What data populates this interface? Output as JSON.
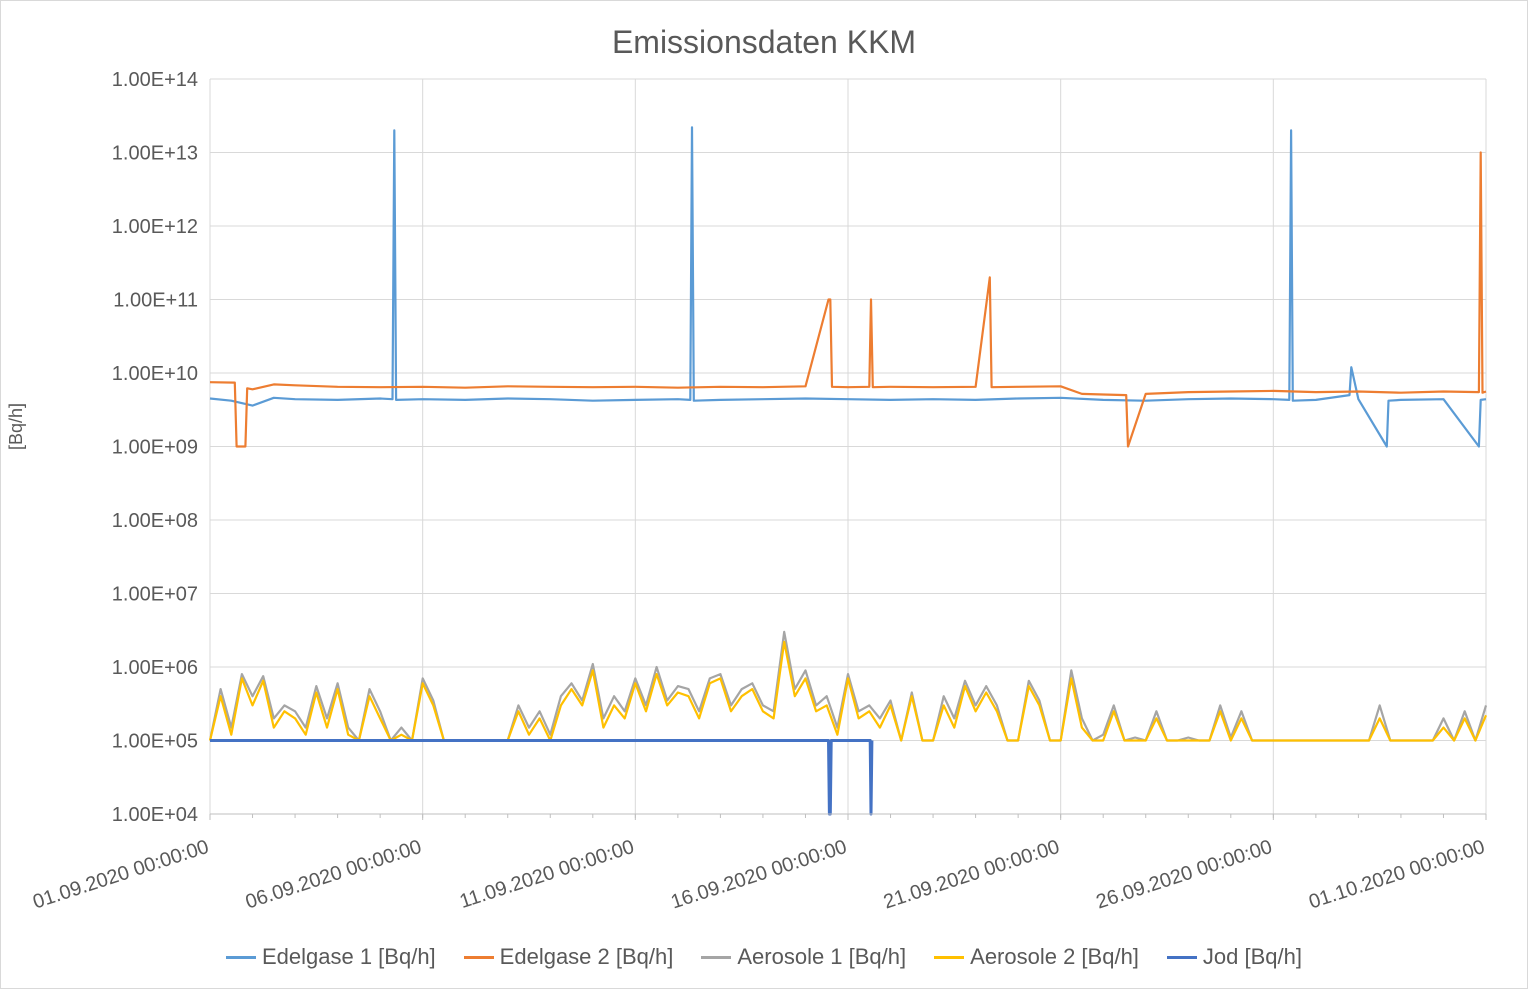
{
  "chart_data": {
    "type": "line",
    "title": "Emissionsdaten KKM",
    "xlabel": "",
    "ylabel": "[Bq/h]",
    "y_scale": "log",
    "ylim": [
      10000,
      100000000000000
    ],
    "y_ticks": [
      "1.00E+04",
      "1.00E+05",
      "1.00E+06",
      "1.00E+07",
      "1.00E+08",
      "1.00E+09",
      "1.00E+10",
      "1.00E+11",
      "1.00E+12",
      "1.00E+13",
      "1.00E+14"
    ],
    "x_range": [
      "2020-09-01 00:00",
      "2020-10-01 00:00"
    ],
    "x_ticks": [
      "01.09.2020 00:00:00",
      "06.09.2020 00:00:00",
      "11.09.2020 00:00:00",
      "16.09.2020 00:00:00",
      "21.09.2020 00:00:00",
      "26.09.2020 00:00:00",
      "01.10.2020 00:00:00"
    ],
    "grid": "major",
    "legend_position": "bottom",
    "series": [
      {
        "name": "Edelgase 1 [Bq/h]",
        "color": "#5b9bd5",
        "x": [
          "2020-09-01 00:00",
          "2020-09-01 12:00",
          "2020-09-02 00:00",
          "2020-09-02 12:00",
          "2020-09-03 00:00",
          "2020-09-04 00:00",
          "2020-09-05 00:00",
          "2020-09-05 07:00",
          "2020-09-05 08:00",
          "2020-09-05 09:00",
          "2020-09-06 00:00",
          "2020-09-07 00:00",
          "2020-09-08 00:00",
          "2020-09-09 00:00",
          "2020-09-10 00:00",
          "2020-09-11 00:00",
          "2020-09-12 00:00",
          "2020-09-12 07:00",
          "2020-09-12 08:00",
          "2020-09-12 09:00",
          "2020-09-13 00:00",
          "2020-09-14 00:00",
          "2020-09-15 00:00",
          "2020-09-16 00:00",
          "2020-09-17 00:00",
          "2020-09-18 00:00",
          "2020-09-19 00:00",
          "2020-09-20 00:00",
          "2020-09-21 00:00",
          "2020-09-22 00:00",
          "2020-09-23 00:00",
          "2020-09-24 00:00",
          "2020-09-25 00:00",
          "2020-09-26 00:00",
          "2020-09-26 09:00",
          "2020-09-26 10:00",
          "2020-09-26 11:00",
          "2020-09-27 00:00",
          "2020-09-27 19:00",
          "2020-09-27 20:00",
          "2020-09-28 00:00",
          "2020-09-28 16:00",
          "2020-09-28 17:00",
          "2020-09-29 00:00",
          "2020-09-30 00:00",
          "2020-09-30 20:00",
          "2020-09-30 21:00",
          "2020-10-01 00:00"
        ],
        "values": [
          4500000000,
          4200000000,
          3600000000,
          4600000000,
          4400000000,
          4300000000,
          4500000000,
          4400000000,
          20000000000000,
          4300000000,
          4400000000,
          4300000000,
          4500000000,
          4400000000,
          4200000000,
          4300000000,
          4400000000,
          4300000000,
          22000000000000,
          4200000000,
          4300000000,
          4400000000,
          4500000000,
          4400000000,
          4300000000,
          4400000000,
          4300000000,
          4500000000,
          4600000000,
          4300000000,
          4200000000,
          4400000000,
          4500000000,
          4400000000,
          4300000000,
          20000000000000,
          4200000000,
          4300000000,
          5000000000,
          12000000000,
          4400000000,
          1000000000,
          4200000000,
          4300000000,
          4400000000,
          1000000000,
          4300000000,
          4400000000
        ]
      },
      {
        "name": "Edelgase 2 [Bq/h]",
        "color": "#ed7d31",
        "x": [
          "2020-09-01 00:00",
          "2020-09-01 14:00",
          "2020-09-01 15:00",
          "2020-09-01 20:00",
          "2020-09-01 21:00",
          "2020-09-02 00:00",
          "2020-09-02 12:00",
          "2020-09-03 00:00",
          "2020-09-04 00:00",
          "2020-09-05 00:00",
          "2020-09-06 00:00",
          "2020-09-07 00:00",
          "2020-09-08 00:00",
          "2020-09-09 00:00",
          "2020-09-10 00:00",
          "2020-09-11 00:00",
          "2020-09-12 00:00",
          "2020-09-13 00:00",
          "2020-09-14 00:00",
          "2020-09-15 00:00",
          "2020-09-15 13:00",
          "2020-09-15 14:00",
          "2020-09-15 15:00",
          "2020-09-16 00:00",
          "2020-09-16 12:00",
          "2020-09-16 13:00",
          "2020-09-16 14:00",
          "2020-09-17 00:00",
          "2020-09-18 00:00",
          "2020-09-19 00:00",
          "2020-09-19 08:00",
          "2020-09-19 09:00",
          "2020-09-20 00:00",
          "2020-09-21 00:00",
          "2020-09-21 12:00",
          "2020-09-22 00:00",
          "2020-09-22 13:00",
          "2020-09-22 14:00",
          "2020-09-23 00:00",
          "2020-09-24 00:00",
          "2020-09-25 00:00",
          "2020-09-26 00:00",
          "2020-09-27 00:00",
          "2020-09-28 00:00",
          "2020-09-29 00:00",
          "2020-09-30 00:00",
          "2020-09-30 20:00",
          "2020-09-30 21:00",
          "2020-09-30 22:00",
          "2020-10-01 00:00"
        ],
        "values": [
          7500000000,
          7400000000,
          1000000000,
          1000000000,
          6200000000,
          6000000000,
          7000000000,
          6800000000,
          6500000000,
          6400000000,
          6500000000,
          6300000000,
          6600000000,
          6500000000,
          6400000000,
          6500000000,
          6300000000,
          6500000000,
          6400000000,
          6600000000,
          100000000000,
          100000000000,
          6500000000,
          6400000000,
          6500000000,
          100000000000,
          6400000000,
          6500000000,
          6400000000,
          6500000000,
          200000000000,
          6400000000,
          6500000000,
          6600000000,
          5200000000,
          5100000000,
          5000000000,
          1000000000,
          5200000000,
          5500000000,
          5600000000,
          5700000000,
          5500000000,
          5600000000,
          5400000000,
          5600000000,
          5500000000,
          10000000000000,
          5400000000,
          5600000000
        ]
      },
      {
        "name": "Aerosole 1 [Bq/h]",
        "color": "#a5a5a5",
        "x": [
          "2020-09-01 00:00",
          "2020-09-01 06:00",
          "2020-09-01 12:00",
          "2020-09-01 18:00",
          "2020-09-02 00:00",
          "2020-09-02 06:00",
          "2020-09-02 12:00",
          "2020-09-02 18:00",
          "2020-09-03 00:00",
          "2020-09-03 06:00",
          "2020-09-03 12:00",
          "2020-09-03 18:00",
          "2020-09-04 00:00",
          "2020-09-04 06:00",
          "2020-09-04 12:00",
          "2020-09-04 18:00",
          "2020-09-05 00:00",
          "2020-09-05 06:00",
          "2020-09-05 12:00",
          "2020-09-05 18:00",
          "2020-09-06 00:00",
          "2020-09-06 06:00",
          "2020-09-06 12:00",
          "2020-09-06 18:00",
          "2020-09-07 00:00",
          "2020-09-07 06:00",
          "2020-09-07 12:00",
          "2020-09-07 18:00",
          "2020-09-08 00:00",
          "2020-09-08 06:00",
          "2020-09-08 12:00",
          "2020-09-08 18:00",
          "2020-09-09 00:00",
          "2020-09-09 06:00",
          "2020-09-09 12:00",
          "2020-09-09 18:00",
          "2020-09-10 00:00",
          "2020-09-10 06:00",
          "2020-09-10 12:00",
          "2020-09-10 18:00",
          "2020-09-11 00:00",
          "2020-09-11 06:00",
          "2020-09-11 12:00",
          "2020-09-11 18:00",
          "2020-09-12 00:00",
          "2020-09-12 06:00",
          "2020-09-12 12:00",
          "2020-09-12 18:00",
          "2020-09-13 00:00",
          "2020-09-13 06:00",
          "2020-09-13 12:00",
          "2020-09-13 18:00",
          "2020-09-14 00:00",
          "2020-09-14 06:00",
          "2020-09-14 12:00",
          "2020-09-14 18:00",
          "2020-09-15 00:00",
          "2020-09-15 06:00",
          "2020-09-15 12:00",
          "2020-09-15 18:00",
          "2020-09-16 00:00",
          "2020-09-16 06:00",
          "2020-09-16 12:00",
          "2020-09-16 18:00",
          "2020-09-17 00:00",
          "2020-09-17 06:00",
          "2020-09-17 12:00",
          "2020-09-17 18:00",
          "2020-09-18 00:00",
          "2020-09-18 06:00",
          "2020-09-18 12:00",
          "2020-09-18 18:00",
          "2020-09-19 00:00",
          "2020-09-19 06:00",
          "2020-09-19 12:00",
          "2020-09-19 18:00",
          "2020-09-20 00:00",
          "2020-09-20 06:00",
          "2020-09-20 12:00",
          "2020-09-20 18:00",
          "2020-09-21 00:00",
          "2020-09-21 06:00",
          "2020-09-21 12:00",
          "2020-09-21 18:00",
          "2020-09-22 00:00",
          "2020-09-22 06:00",
          "2020-09-22 12:00",
          "2020-09-22 18:00",
          "2020-09-23 00:00",
          "2020-09-23 06:00",
          "2020-09-23 12:00",
          "2020-09-23 18:00",
          "2020-09-24 00:00",
          "2020-09-24 06:00",
          "2020-09-24 12:00",
          "2020-09-24 18:00",
          "2020-09-25 00:00",
          "2020-09-25 06:00",
          "2020-09-25 12:00",
          "2020-09-25 18:00",
          "2020-09-26 00:00",
          "2020-09-26 06:00",
          "2020-09-26 12:00",
          "2020-09-26 18:00",
          "2020-09-27 00:00",
          "2020-09-27 06:00",
          "2020-09-27 12:00",
          "2020-09-27 18:00",
          "2020-09-28 00:00",
          "2020-09-28 06:00",
          "2020-09-28 12:00",
          "2020-09-28 18:00",
          "2020-09-29 00:00",
          "2020-09-29 06:00",
          "2020-09-29 12:00",
          "2020-09-29 18:00",
          "2020-09-30 00:00",
          "2020-09-30 06:00",
          "2020-09-30 12:00",
          "2020-09-30 18:00",
          "2020-10-01 00:00"
        ],
        "values": [
          100000,
          500000,
          150000,
          800000,
          400000,
          750000,
          200000,
          300000,
          250000,
          150000,
          550000,
          200000,
          600000,
          150000,
          100000,
          500000,
          250000,
          100000,
          150000,
          100000,
          700000,
          350000,
          100000,
          100000,
          100000,
          100000,
          100000,
          100000,
          100000,
          300000,
          150000,
          250000,
          120000,
          400000,
          600000,
          350000,
          1100000,
          200000,
          400000,
          250000,
          700000,
          300000,
          1000000,
          350000,
          550000,
          500000,
          250000,
          700000,
          800000,
          300000,
          500000,
          600000,
          300000,
          250000,
          3000000,
          500000,
          900000,
          300000,
          400000,
          150000,
          800000,
          250000,
          300000,
          200000,
          350000,
          100000,
          450000,
          100000,
          100000,
          400000,
          200000,
          650000,
          300000,
          550000,
          300000,
          100000,
          100000,
          650000,
          350000,
          100000,
          100000,
          900000,
          200000,
          100000,
          120000,
          300000,
          100000,
          110000,
          100000,
          250000,
          100000,
          100000,
          110000,
          100000,
          100000,
          300000,
          110000,
          250000,
          100000,
          100000,
          100000,
          100000,
          100000,
          100000,
          100000,
          100000,
          100000,
          100000,
          100000,
          100000,
          300000,
          100000,
          100000,
          100000,
          100000,
          100000,
          200000,
          100000,
          250000,
          100000,
          300000
        ]
      },
      {
        "name": "Aerosole 2 [Bq/h]",
        "color": "#ffc000",
        "x": [
          "2020-09-01 00:00",
          "2020-09-01 06:00",
          "2020-09-01 12:00",
          "2020-09-01 18:00",
          "2020-09-02 00:00",
          "2020-09-02 06:00",
          "2020-09-02 12:00",
          "2020-09-02 18:00",
          "2020-09-03 00:00",
          "2020-09-03 06:00",
          "2020-09-03 12:00",
          "2020-09-03 18:00",
          "2020-09-04 00:00",
          "2020-09-04 06:00",
          "2020-09-04 12:00",
          "2020-09-04 18:00",
          "2020-09-05 00:00",
          "2020-09-05 06:00",
          "2020-09-05 12:00",
          "2020-09-05 18:00",
          "2020-09-06 00:00",
          "2020-09-06 06:00",
          "2020-09-06 12:00",
          "2020-09-06 18:00",
          "2020-09-07 00:00",
          "2020-09-07 06:00",
          "2020-09-07 12:00",
          "2020-09-07 18:00",
          "2020-09-08 00:00",
          "2020-09-08 06:00",
          "2020-09-08 12:00",
          "2020-09-08 18:00",
          "2020-09-09 00:00",
          "2020-09-09 06:00",
          "2020-09-09 12:00",
          "2020-09-09 18:00",
          "2020-09-10 00:00",
          "2020-09-10 06:00",
          "2020-09-10 12:00",
          "2020-09-10 18:00",
          "2020-09-11 00:00",
          "2020-09-11 06:00",
          "2020-09-11 12:00",
          "2020-09-11 18:00",
          "2020-09-12 00:00",
          "2020-09-12 06:00",
          "2020-09-12 12:00",
          "2020-09-12 18:00",
          "2020-09-13 00:00",
          "2020-09-13 06:00",
          "2020-09-13 12:00",
          "2020-09-13 18:00",
          "2020-09-14 00:00",
          "2020-09-14 06:00",
          "2020-09-14 12:00",
          "2020-09-14 18:00",
          "2020-09-15 00:00",
          "2020-09-15 06:00",
          "2020-09-15 12:00",
          "2020-09-15 18:00",
          "2020-09-16 00:00",
          "2020-09-16 06:00",
          "2020-09-16 12:00",
          "2020-09-16 18:00",
          "2020-09-17 00:00",
          "2020-09-17 06:00",
          "2020-09-17 12:00",
          "2020-09-17 18:00",
          "2020-09-18 00:00",
          "2020-09-18 06:00",
          "2020-09-18 12:00",
          "2020-09-18 18:00",
          "2020-09-19 00:00",
          "2020-09-19 06:00",
          "2020-09-19 12:00",
          "2020-09-19 18:00",
          "2020-09-20 00:00",
          "2020-09-20 06:00",
          "2020-09-20 12:00",
          "2020-09-20 18:00",
          "2020-09-21 00:00",
          "2020-09-21 06:00",
          "2020-09-21 12:00",
          "2020-09-21 18:00",
          "2020-09-22 00:00",
          "2020-09-22 06:00",
          "2020-09-22 12:00",
          "2020-09-22 18:00",
          "2020-09-23 00:00",
          "2020-09-23 06:00",
          "2020-09-23 12:00",
          "2020-09-23 18:00",
          "2020-09-24 00:00",
          "2020-09-24 06:00",
          "2020-09-24 12:00",
          "2020-09-24 18:00",
          "2020-09-25 00:00",
          "2020-09-25 06:00",
          "2020-09-25 12:00",
          "2020-09-25 18:00",
          "2020-09-26 00:00",
          "2020-09-26 06:00",
          "2020-09-26 12:00",
          "2020-09-26 18:00",
          "2020-09-27 00:00",
          "2020-09-27 06:00",
          "2020-09-27 12:00",
          "2020-09-27 18:00",
          "2020-09-28 00:00",
          "2020-09-28 06:00",
          "2020-09-28 12:00",
          "2020-09-28 18:00",
          "2020-09-29 00:00",
          "2020-09-29 06:00",
          "2020-09-29 12:00",
          "2020-09-29 18:00",
          "2020-09-30 00:00",
          "2020-09-30 06:00",
          "2020-09-30 12:00",
          "2020-09-30 18:00",
          "2020-10-01 00:00"
        ],
        "values": [
          100000,
          400000,
          120000,
          700000,
          300000,
          650000,
          150000,
          250000,
          200000,
          120000,
          450000,
          150000,
          500000,
          120000,
          100000,
          400000,
          200000,
          100000,
          120000,
          100000,
          600000,
          300000,
          100000,
          100000,
          100000,
          100000,
          100000,
          100000,
          100000,
          250000,
          120000,
          200000,
          100000,
          300000,
          500000,
          300000,
          900000,
          150000,
          300000,
          200000,
          600000,
          250000,
          800000,
          300000,
          450000,
          400000,
          200000,
          600000,
          700000,
          250000,
          400000,
          500000,
          250000,
          200000,
          2200000,
          400000,
          700000,
          250000,
          300000,
          120000,
          700000,
          200000,
          250000,
          150000,
          300000,
          100000,
          400000,
          100000,
          100000,
          300000,
          150000,
          550000,
          250000,
          450000,
          250000,
          100000,
          100000,
          550000,
          300000,
          100000,
          100000,
          700000,
          150000,
          100000,
          100000,
          250000,
          100000,
          100000,
          100000,
          200000,
          100000,
          100000,
          100000,
          100000,
          100000,
          250000,
          100000,
          200000,
          100000,
          100000,
          100000,
          100000,
          100000,
          100000,
          100000,
          100000,
          100000,
          100000,
          100000,
          100000,
          200000,
          100000,
          100000,
          100000,
          100000,
          100000,
          150000,
          100000,
          200000,
          100000,
          220000
        ]
      },
      {
        "name": "Jod [Bq/h]",
        "color": "#4472c4",
        "x": [
          "2020-09-01 00:00",
          "2020-09-15 13:00",
          "2020-09-15 13:30",
          "2020-09-15 14:00",
          "2020-09-15 14:30",
          "2020-09-16 12:30",
          "2020-09-16 13:00",
          "2020-09-16 13:30",
          "2020-09-16 14:00"
        ],
        "values": [
          100000,
          100000,
          10000,
          10000,
          100000,
          100000,
          10000,
          100000,
          null
        ]
      }
    ]
  }
}
